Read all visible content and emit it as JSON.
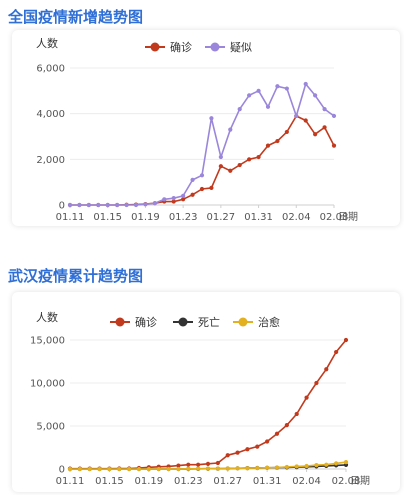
{
  "chart_data": [
    {
      "type": "line",
      "title": "全国疫情新增趋势图",
      "ylabel": "人数",
      "xlabel": "日期",
      "ylim": [
        0,
        6000
      ],
      "yticks": [
        0,
        2000,
        4000,
        6000
      ],
      "ytick_labels": [
        "0",
        "2,000",
        "4,000",
        "6,000"
      ],
      "xtick_labels": [
        "01.11",
        "01.15",
        "01.19",
        "01.23",
        "01.27",
        "01.31",
        "02.04",
        "02.08"
      ],
      "categories": [
        "01.11",
        "01.12",
        "01.13",
        "01.14",
        "01.15",
        "01.16",
        "01.17",
        "01.18",
        "01.19",
        "01.20",
        "01.21",
        "01.22",
        "01.23",
        "01.24",
        "01.25",
        "01.26",
        "01.27",
        "01.28",
        "01.29",
        "01.30",
        "01.31",
        "02.01",
        "02.02",
        "02.03",
        "02.04",
        "02.05",
        "02.06",
        "02.07",
        "02.08"
      ],
      "grid": true,
      "legend_position": "top",
      "series": [
        {
          "name": "确诊",
          "color": "#c23a1d",
          "values": [
            0,
            0,
            0,
            0,
            0,
            0,
            10,
            20,
            40,
            80,
            150,
            150,
            250,
            450,
            700,
            750,
            1700,
            1500,
            1750,
            2000,
            2100,
            2600,
            2800,
            3200,
            3900,
            3700,
            3100,
            3400,
            2600
          ]
        },
        {
          "name": "疑似",
          "color": "#9a86db",
          "values": [
            0,
            0,
            0,
            0,
            0,
            0,
            0,
            0,
            30,
            80,
            250,
            300,
            400,
            1100,
            1300,
            3800,
            2100,
            3300,
            4200,
            4800,
            5000,
            4300,
            5200,
            5100,
            3900,
            5300,
            4800,
            4200,
            3900
          ]
        }
      ]
    },
    {
      "type": "line",
      "title": "武汉疫情累计趋势图",
      "ylabel": "人数",
      "xlabel": "日期",
      "ylim": [
        0,
        15000
      ],
      "yticks": [
        0,
        5000,
        10000,
        15000
      ],
      "ytick_labels": [
        "0",
        "5,000",
        "10,000",
        "15,000"
      ],
      "xtick_labels": [
        "01.11",
        "01.15",
        "01.19",
        "01.23",
        "01.27",
        "01.31",
        "02.04",
        "02.08"
      ],
      "categories": [
        "01.11",
        "01.12",
        "01.13",
        "01.14",
        "01.15",
        "01.16",
        "01.17",
        "01.18",
        "01.19",
        "01.20",
        "01.21",
        "01.22",
        "01.23",
        "01.24",
        "01.25",
        "01.26",
        "01.27",
        "01.28",
        "01.29",
        "01.30",
        "01.31",
        "02.01",
        "02.02",
        "02.03",
        "02.04",
        "02.05",
        "02.06",
        "02.07",
        "02.08"
      ],
      "grid": true,
      "legend_position": "top",
      "series": [
        {
          "name": "确诊",
          "color": "#c23a1d",
          "values": [
            40,
            40,
            40,
            40,
            40,
            60,
            60,
            120,
            200,
            260,
            300,
            400,
            500,
            500,
            600,
            700,
            1600,
            1900,
            2300,
            2600,
            3200,
            4100,
            5100,
            6400,
            8300,
            10000,
            11600,
            13600,
            15000
          ]
        },
        {
          "name": "死亡",
          "color": "#333333",
          "values": [
            0,
            0,
            0,
            0,
            0,
            0,
            0,
            0,
            0,
            0,
            0,
            0,
            10,
            20,
            30,
            40,
            60,
            80,
            100,
            120,
            140,
            160,
            190,
            220,
            260,
            300,
            360,
            420,
            480
          ]
        },
        {
          "name": "治愈",
          "color": "#e3b01f",
          "values": [
            0,
            0,
            0,
            0,
            0,
            0,
            0,
            0,
            0,
            0,
            0,
            0,
            30,
            40,
            40,
            50,
            60,
            80,
            90,
            110,
            150,
            180,
            240,
            300,
            350,
            450,
            500,
            650,
            800
          ]
        }
      ]
    }
  ]
}
